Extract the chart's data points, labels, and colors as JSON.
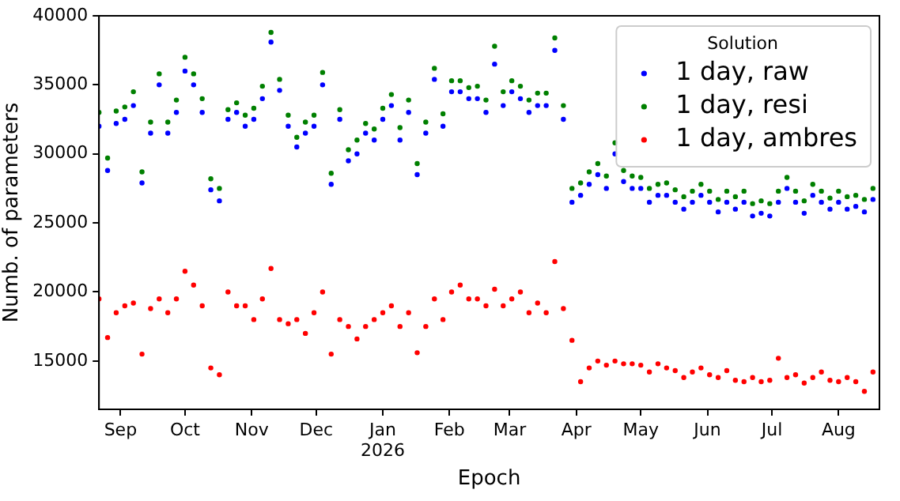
{
  "chart_data": {
    "type": "scatter",
    "xlabel": "Epoch",
    "ylabel": "Numb. of parameters",
    "legend_title": "Solution",
    "legend": "top right",
    "marker": "circle",
    "grid": false,
    "xlim": [
      "2025-08-22",
      "2026-08-20"
    ],
    "xticks": [
      {
        "value": "2025-09-01",
        "label": "Sep"
      },
      {
        "value": "2025-10-01",
        "label": "Oct"
      },
      {
        "value": "2025-11-01",
        "label": "Nov"
      },
      {
        "value": "2025-12-01",
        "label": "Dec"
      },
      {
        "value": "2026-01-01",
        "label": "Jan\n2026"
      },
      {
        "value": "2026-02-01",
        "label": "Feb"
      },
      {
        "value": "2026-03-01",
        "label": "Mar"
      },
      {
        "value": "2026-04-01",
        "label": "Apr"
      },
      {
        "value": "2026-05-01",
        "label": "May"
      },
      {
        "value": "2026-06-01",
        "label": "Jun"
      },
      {
        "value": "2026-07-01",
        "label": "Jul"
      },
      {
        "value": "2026-08-01",
        "label": "Aug"
      }
    ],
    "ylim": [
      11500,
      40000
    ],
    "yticks": [
      15000,
      20000,
      25000,
      30000,
      35000,
      40000
    ],
    "x": [
      "2025-08-22",
      "2025-08-26",
      "2025-08-30",
      "2025-09-03",
      "2025-09-07",
      "2025-09-11",
      "2025-09-15",
      "2025-09-19",
      "2025-09-23",
      "2025-09-27",
      "2025-10-01",
      "2025-10-05",
      "2025-10-09",
      "2025-10-13",
      "2025-10-17",
      "2025-10-21",
      "2025-10-25",
      "2025-10-29",
      "2025-11-02",
      "2025-11-06",
      "2025-11-10",
      "2025-11-14",
      "2025-11-18",
      "2025-11-22",
      "2025-11-26",
      "2025-11-30",
      "2025-12-04",
      "2025-12-08",
      "2025-12-12",
      "2025-12-16",
      "2025-12-20",
      "2025-12-24",
      "2025-12-28",
      "2026-01-01",
      "2026-01-05",
      "2026-01-09",
      "2026-01-13",
      "2026-01-17",
      "2026-01-21",
      "2026-01-25",
      "2026-01-29",
      "2026-02-02",
      "2026-02-06",
      "2026-02-10",
      "2026-02-14",
      "2026-02-18",
      "2026-02-22",
      "2026-02-26",
      "2026-03-02",
      "2026-03-06",
      "2026-03-10",
      "2026-03-14",
      "2026-03-18",
      "2026-03-22",
      "2026-03-26",
      "2026-03-30",
      "2026-04-03",
      "2026-04-07",
      "2026-04-11",
      "2026-04-15",
      "2026-04-19",
      "2026-04-23",
      "2026-04-27",
      "2026-05-01",
      "2026-05-05",
      "2026-05-09",
      "2026-05-13",
      "2026-05-17",
      "2026-05-21",
      "2026-05-25",
      "2026-05-29",
      "2026-06-02",
      "2026-06-06",
      "2026-06-10",
      "2026-06-14",
      "2026-06-18",
      "2026-06-22",
      "2026-06-26",
      "2026-06-30",
      "2026-07-04",
      "2026-07-08",
      "2026-07-12",
      "2026-07-16",
      "2026-07-20",
      "2026-07-24",
      "2026-07-28",
      "2026-08-01",
      "2026-08-05",
      "2026-08-09",
      "2026-08-13",
      "2026-08-17"
    ],
    "series": [
      {
        "name": "1 day, raw",
        "color": "#0000ff",
        "values": [
          32000,
          28800,
          32200,
          32500,
          33500,
          27900,
          31500,
          35000,
          31500,
          33000,
          36000,
          35000,
          33000,
          27400,
          26600,
          32500,
          33000,
          32000,
          32500,
          34000,
          38100,
          34600,
          32000,
          30500,
          31500,
          32000,
          35000,
          27800,
          32500,
          29500,
          30000,
          31500,
          31000,
          32500,
          33500,
          31000,
          33000,
          28500,
          31500,
          35400,
          32000,
          34500,
          34500,
          34000,
          34000,
          33000,
          36500,
          33500,
          34500,
          34000,
          33000,
          33500,
          33500,
          37500,
          32500,
          26500,
          27000,
          27800,
          28500,
          27500,
          30000,
          28000,
          27500,
          27500,
          26500,
          27000,
          27000,
          26500,
          26000,
          26500,
          27000,
          26500,
          25800,
          26500,
          26000,
          26500,
          25500,
          25700,
          25500,
          26500,
          27500,
          26500,
          25700,
          27000,
          26500,
          26000,
          26500,
          26000,
          26200,
          25800,
          26700
        ]
      },
      {
        "name": "1 day, resi",
        "color": "#008000",
        "values": [
          33000,
          29700,
          33100,
          33400,
          34500,
          28700,
          32300,
          35800,
          32300,
          33900,
          37000,
          35800,
          34000,
          28200,
          27500,
          33200,
          33700,
          32800,
          33300,
          34900,
          38800,
          35400,
          32800,
          31200,
          32300,
          32800,
          35900,
          28600,
          33200,
          30300,
          31000,
          32200,
          31800,
          33300,
          34300,
          31900,
          33900,
          29300,
          32300,
          36200,
          32900,
          35300,
          35300,
          34800,
          34900,
          33900,
          37800,
          34500,
          35300,
          34900,
          33900,
          34400,
          34400,
          38400,
          33500,
          27500,
          27900,
          28700,
          29300,
          28400,
          30800,
          28800,
          28400,
          28300,
          27500,
          27800,
          27900,
          27400,
          26900,
          27300,
          27800,
          27300,
          26700,
          27300,
          26900,
          27300,
          26400,
          26600,
          26400,
          27300,
          28300,
          27300,
          26600,
          27800,
          27300,
          26800,
          27300,
          26900,
          27000,
          26700,
          27500
        ]
      },
      {
        "name": "1 day, ambres",
        "color": "#ff0000",
        "values": [
          19500,
          16700,
          18500,
          19000,
          19200,
          15500,
          18800,
          19500,
          18500,
          19500,
          21500,
          20500,
          19000,
          14500,
          14000,
          20000,
          19000,
          19000,
          18000,
          19500,
          21700,
          18000,
          17700,
          18000,
          17000,
          18500,
          20000,
          15500,
          18000,
          17500,
          16600,
          17500,
          18000,
          18500,
          19000,
          17500,
          18500,
          15600,
          17500,
          19500,
          18000,
          20000,
          20500,
          19500,
          19500,
          19000,
          20200,
          19000,
          19500,
          20000,
          18500,
          19200,
          18500,
          22200,
          18800,
          16500,
          13500,
          14500,
          15000,
          14700,
          15000,
          14800,
          14800,
          14700,
          14200,
          14800,
          14500,
          14300,
          13800,
          14200,
          14500,
          14000,
          13800,
          14300,
          13600,
          13500,
          13800,
          13500,
          13600,
          15200,
          13800,
          14000,
          13400,
          13800,
          14200,
          13600,
          13500,
          13800,
          13500,
          12800,
          14200
        ]
      }
    ]
  }
}
